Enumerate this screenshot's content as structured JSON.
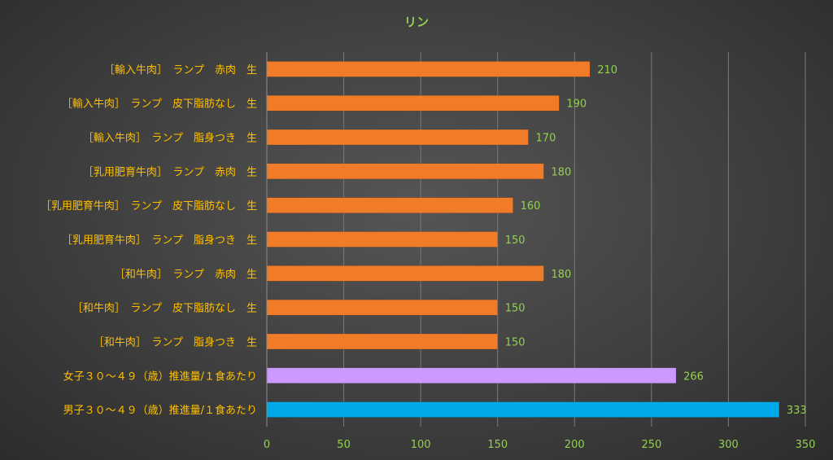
{
  "chart_data": {
    "type": "bar",
    "orientation": "horizontal",
    "title": "リン",
    "xlabel": "",
    "ylabel": "",
    "xlim": [
      0,
      350
    ],
    "x_ticks": [
      0,
      50,
      100,
      150,
      200,
      250,
      300,
      350
    ],
    "grid": true,
    "legend": "none",
    "colors": {
      "title": "#92D050",
      "category_label": "#FFC000",
      "value_label": "#92D050",
      "tick_label": "#92D050",
      "gridline": "#7a7a7a"
    },
    "categories": [
      "［輸入牛肉］　ランプ　赤肉　生",
      "［輸入牛肉］　ランプ　皮下脂肪なし　生",
      "［輸入牛肉］　ランプ　脂身つき　生",
      "［乳用肥育牛肉］　ランプ　赤肉　生",
      "［乳用肥育牛肉］　ランプ　皮下脂肪なし　生",
      "［乳用肥育牛肉］　ランプ　脂身つき　生",
      "［和牛肉］　ランプ　赤肉　生",
      "［和牛肉］　ランプ　皮下脂肪なし　生",
      "［和牛肉］　ランプ　脂身つき　生",
      "女子３０～４９（歳）推進量/１食あたり",
      "男子３０～４９（歳）推進量/１食あたり"
    ],
    "values": [
      210,
      190,
      170,
      180,
      160,
      150,
      180,
      150,
      150,
      266,
      333
    ],
    "bar_colors": [
      "#F07C2A",
      "#F07C2A",
      "#F07C2A",
      "#F07C2A",
      "#F07C2A",
      "#F07C2A",
      "#F07C2A",
      "#F07C2A",
      "#F07C2A",
      "#CC99FF",
      "#00A9E8"
    ]
  }
}
